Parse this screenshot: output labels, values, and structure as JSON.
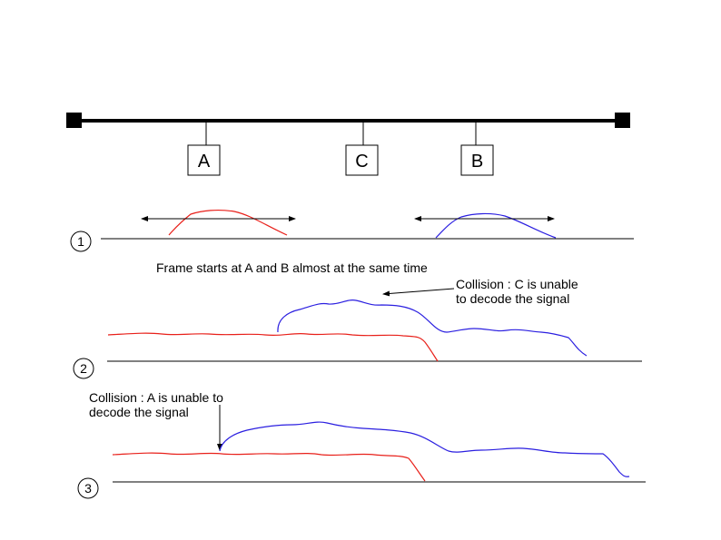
{
  "bus": {
    "stations": [
      {
        "id": "A",
        "label": "A"
      },
      {
        "id": "C",
        "label": "C"
      },
      {
        "id": "B",
        "label": "B"
      }
    ]
  },
  "steps": [
    {
      "number": "1"
    },
    {
      "number": "2"
    },
    {
      "number": "3"
    }
  ],
  "annotations": {
    "frame_start": "Frame starts at A and B almost at the same time",
    "collision_c_line1": "Collision : C is unable",
    "collision_c_line2": "to decode the signal",
    "collision_a_line1": "Collision : A is unable to",
    "collision_a_line2": "decode the signal"
  },
  "colors": {
    "signal_a": "#e8201a",
    "signal_b": "#2b1fe0",
    "line": "#000000"
  }
}
